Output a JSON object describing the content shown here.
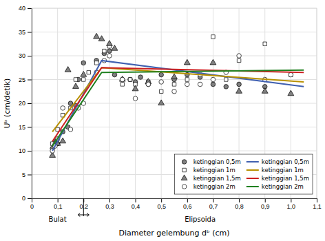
{
  "chart_data": {
    "type": "scatter",
    "xlabel": "Diameter gelembung dᵇ (cm)",
    "ylabel": "Uᵇ (cm/detik)",
    "xlim": [
      0,
      1.1
    ],
    "ylim": [
      0,
      40
    ],
    "xticks": [
      0,
      {
        "value": 0.1,
        "label": "0,1"
      },
      {
        "value": 0.2,
        "label": "0,2"
      },
      {
        "value": 0.3,
        "label": "0,3"
      },
      {
        "value": 0.4,
        "label": "0,4"
      },
      {
        "value": 0.5,
        "label": "0,5"
      },
      {
        "value": 0.6,
        "label": "0,6"
      },
      {
        "value": 0.7,
        "label": "0,7"
      },
      {
        "value": 0.8,
        "label": "0,8"
      },
      {
        "value": 0.9,
        "label": "0,9"
      },
      {
        "value": 1.0,
        "label": "1,0"
      },
      {
        "value": 1.1,
        "label": "1,1"
      }
    ],
    "yticks": [
      0,
      5,
      10,
      15,
      20,
      25,
      30,
      35,
      40
    ],
    "grid": true,
    "legend": "lower right",
    "regions": [
      {
        "label": "Bulat",
        "from": 0,
        "to": 0.2
      },
      {
        "label": "Elipsoida",
        "from": 0.2,
        "to": 1.1
      }
    ],
    "series": [
      {
        "name": "ketinggian 0,5m",
        "type": "scatter",
        "marker": "circle",
        "color": "gray",
        "x": [
          0.08,
          0.09,
          0.1,
          0.12,
          0.14,
          0.15,
          0.17,
          0.18,
          0.2,
          0.25,
          0.28,
          0.3,
          0.32,
          0.35,
          0.38,
          0.4,
          0.42,
          0.45,
          0.5,
          0.55,
          0.6,
          0.65,
          0.7,
          0.75,
          0.8,
          0.9
        ],
        "values": [
          10.5,
          12.0,
          11.5,
          14.0,
          15.0,
          20.0,
          19.5,
          25.0,
          28.5,
          29.0,
          30.5,
          31.0,
          26.0,
          25.0,
          25.0,
          24.5,
          25.5,
          24.0,
          26.0,
          25.0,
          26.0,
          25.5,
          24.0,
          23.5,
          24.0,
          23.5
        ]
      },
      {
        "name": "ketinggian 1m",
        "type": "scatter",
        "marker": "square",
        "color": "white",
        "x": [
          0.08,
          0.1,
          0.12,
          0.15,
          0.17,
          0.2,
          0.22,
          0.25,
          0.28,
          0.3,
          0.35,
          0.38,
          0.4,
          0.45,
          0.5,
          0.55,
          0.6,
          0.65,
          0.7,
          0.75,
          0.8,
          0.9,
          1.0
        ],
        "values": [
          11.5,
          14.5,
          17.5,
          19.0,
          25.0,
          25.0,
          26.5,
          28.5,
          31.0,
          32.0,
          24.0,
          25.0,
          24.0,
          24.5,
          22.5,
          24.0,
          25.0,
          26.0,
          34.0,
          25.0,
          29.0,
          32.5,
          26.0
        ]
      },
      {
        "name": "ketinggian 1,5m",
        "type": "scatter",
        "marker": "triangle",
        "color": "gray",
        "x": [
          0.08,
          0.09,
          0.1,
          0.12,
          0.14,
          0.17,
          0.2,
          0.25,
          0.27,
          0.3,
          0.32,
          0.35,
          0.4,
          0.45,
          0.5,
          0.55,
          0.6,
          0.7,
          0.8,
          0.9,
          1.0
        ],
        "values": [
          9.0,
          11.5,
          11.5,
          12.0,
          27.0,
          23.5,
          26.0,
          34.0,
          33.5,
          32.5,
          31.5,
          25.0,
          23.0,
          24.5,
          20.0,
          25.5,
          28.5,
          28.5,
          22.5,
          22.5,
          22.0
        ]
      },
      {
        "name": "ketinggian 2m",
        "type": "scatter",
        "marker": "circle",
        "color": "white",
        "x": [
          0.08,
          0.09,
          0.1,
          0.12,
          0.15,
          0.18,
          0.2,
          0.25,
          0.28,
          0.3,
          0.35,
          0.4,
          0.45,
          0.5,
          0.55,
          0.6,
          0.65,
          0.7,
          0.75,
          0.8,
          0.9,
          1.0
        ],
        "values": [
          10.0,
          11.0,
          12.5,
          19.0,
          14.5,
          19.0,
          20.0,
          26.5,
          29.0,
          30.0,
          25.0,
          21.0,
          24.0,
          24.5,
          22.5,
          24.0,
          24.0,
          25.0,
          26.5,
          30.0,
          25.0,
          26.0
        ]
      },
      {
        "name": "ketinggian 0,5m",
        "type": "line",
        "color": "#4060b0",
        "x": [
          0.08,
          0.27,
          1.05
        ],
        "values": [
          10.0,
          29.0,
          23.5
        ]
      },
      {
        "name": "ketinggian 1m",
        "type": "line",
        "color": "#b89000",
        "x": [
          0.08,
          0.27,
          1.05
        ],
        "values": [
          14.0,
          27.5,
          24.5
        ]
      },
      {
        "name": "ketinggian 1,5m",
        "type": "line",
        "color": "#cc2020",
        "x": [
          0.08,
          0.27,
          1.05
        ],
        "values": [
          12.0,
          27.5,
          26.5
        ]
      },
      {
        "name": "ketinggian 2m",
        "type": "line",
        "color": "#208020",
        "x": [
          0.08,
          0.27,
          1.05
        ],
        "values": [
          11.0,
          26.5,
          27.0
        ]
      }
    ]
  }
}
